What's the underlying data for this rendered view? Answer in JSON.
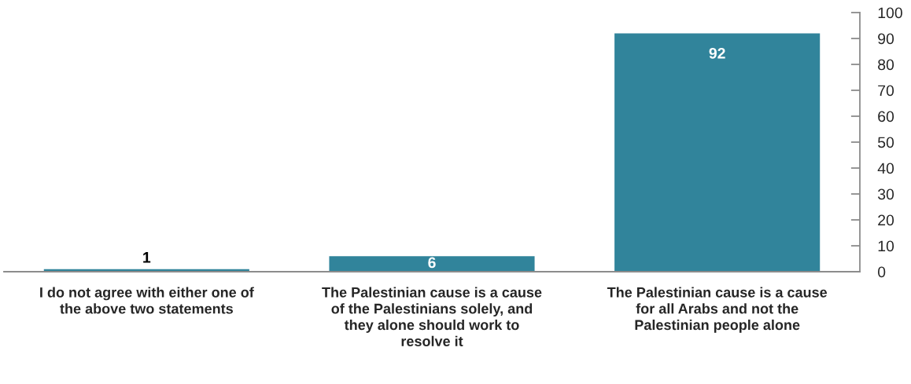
{
  "chart_data": {
    "type": "bar",
    "categories": [
      "I do not agree with either one of\nthe above two statements",
      "The Palestinian cause is a cause\nof the Palestinians solely, and\nthey alone should work to\nresolve it",
      "The Palestinian cause is a cause\nfor all Arabs and not the\nPalestinian people alone"
    ],
    "values": [
      1,
      6,
      92
    ],
    "color": "#31849b",
    "ylim": [
      0,
      100
    ],
    "yticks": [
      0,
      10,
      20,
      30,
      40,
      50,
      60,
      70,
      80,
      90,
      100
    ],
    "data_labels": true
  }
}
